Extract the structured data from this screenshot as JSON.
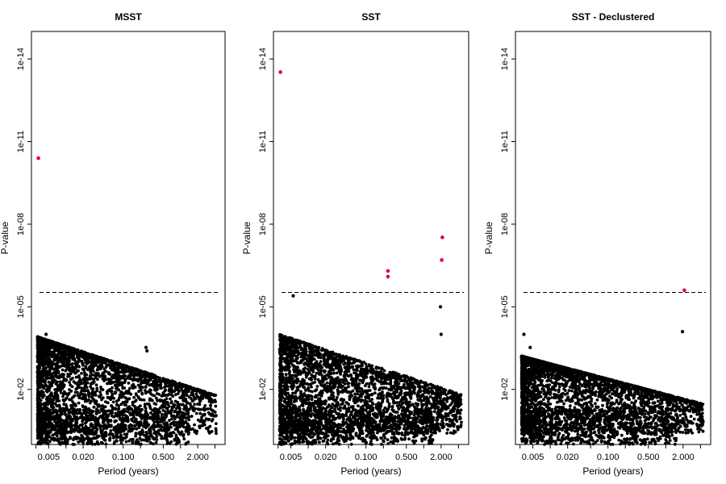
{
  "chart_data": [
    {
      "type": "scatter",
      "title": "MSST",
      "xlabel": "Period (years)",
      "ylabel": "P-value",
      "x_scale": "log",
      "y_scale": "log-reversed",
      "xlim": [
        0.0025,
        6.0
      ],
      "ylim": [
        1,
        1e-15
      ],
      "x_ticks": [
        0.005,
        0.02,
        0.1,
        0.5,
        2.0
      ],
      "x_tick_labels": [
        "0.005",
        "0.020",
        "0.100",
        "0.500",
        "2.000"
      ],
      "y_ticks": [
        1e-14,
        1e-11,
        1e-08,
        1e-05,
        0.01
      ],
      "y_tick_labels": [
        "1e-14",
        "1e-11",
        "1e-08",
        "1e-05",
        "1e-02"
      ],
      "threshold": 3e-06,
      "threshold_style": "dashed",
      "cloud": {
        "x_range": [
          0.0032,
          4.2
        ],
        "y_range": [
          0.4,
          5e-05
        ],
        "density": "dense near small periods, thinning toward long periods",
        "color": "#000000"
      },
      "significant_points": [
        {
          "x": 0.0033,
          "y": 4e-11
        }
      ],
      "notable_points": [
        {
          "x": 0.0045,
          "y": 0.0001
        },
        {
          "x": 0.25,
          "y": 0.0003
        },
        {
          "x": 0.26,
          "y": 0.0004
        }
      ],
      "highlight_color": "#e8002a"
    },
    {
      "type": "scatter",
      "title": "SST",
      "xlabel": "Period (years)",
      "ylabel": "P-value",
      "x_scale": "log",
      "y_scale": "log-reversed",
      "xlim": [
        0.0025,
        6.0
      ],
      "ylim": [
        1,
        1e-15
      ],
      "x_ticks": [
        0.005,
        0.02,
        0.1,
        0.5,
        2.0
      ],
      "x_tick_labels": [
        "0.005",
        "0.020",
        "0.100",
        "0.500",
        "2.000"
      ],
      "y_ticks": [
        1e-14,
        1e-11,
        1e-08,
        1e-05,
        0.01
      ],
      "y_tick_labels": [
        "1e-14",
        "1e-11",
        "1e-08",
        "1e-05",
        "1e-02"
      ],
      "threshold": 3e-06,
      "threshold_style": "dashed",
      "cloud": {
        "x_range": [
          0.0032,
          4.5
        ],
        "y_range": [
          0.4,
          4e-05
        ],
        "density": "dense, extending to long periods",
        "color": "#000000"
      },
      "significant_points": [
        {
          "x": 0.0033,
          "y": 3e-14
        },
        {
          "x": 0.24,
          "y": 5e-07
        },
        {
          "x": 0.24,
          "y": 8e-07
        },
        {
          "x": 2.1,
          "y": 3e-08
        },
        {
          "x": 2.05,
          "y": 2e-07
        }
      ],
      "notable_points": [
        {
          "x": 0.0055,
          "y": 4e-06
        },
        {
          "x": 1.95,
          "y": 1e-05
        },
        {
          "x": 2.0,
          "y": 0.0001
        }
      ],
      "highlight_color": "#e8002a"
    },
    {
      "type": "scatter",
      "title": "SST - Declustered",
      "xlabel": "Period (years)",
      "ylabel": "P-value",
      "x_scale": "log",
      "y_scale": "log-reversed",
      "xlim": [
        0.0025,
        6.0
      ],
      "ylim": [
        1,
        1e-15
      ],
      "x_ticks": [
        0.005,
        0.02,
        0.1,
        0.5,
        2.0
      ],
      "x_tick_labels": [
        "0.005",
        "0.020",
        "0.100",
        "0.500",
        "2.000"
      ],
      "y_ticks": [
        1e-14,
        1e-11,
        1e-08,
        1e-05,
        0.01
      ],
      "y_tick_labels": [
        "1e-14",
        "1e-11",
        "1e-08",
        "1e-05",
        "1e-02"
      ],
      "threshold": 3e-06,
      "threshold_style": "dashed",
      "cloud": {
        "x_range": [
          0.0032,
          4.5
        ],
        "y_range": [
          0.4,
          0.0003
        ],
        "density": "moderately dense, sparse at long periods",
        "color": "#000000"
      },
      "significant_points": [
        {
          "x": 2.1,
          "y": 2.5e-06
        }
      ],
      "notable_points": [
        {
          "x": 0.0035,
          "y": 0.0001
        },
        {
          "x": 0.0045,
          "y": 0.0003
        },
        {
          "x": 1.95,
          "y": 8e-05
        }
      ],
      "highlight_color": "#e8002a"
    }
  ]
}
